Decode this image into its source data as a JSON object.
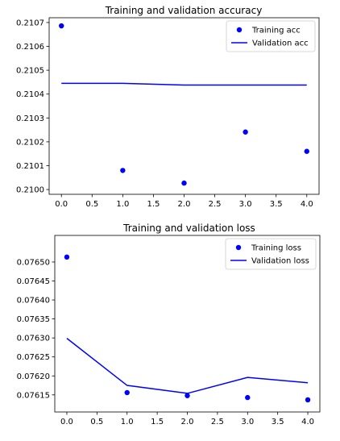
{
  "chart_data": [
    {
      "type": "line",
      "title": "Training and validation accuracy",
      "xlabel": "",
      "ylabel": "",
      "x": [
        0,
        1,
        2,
        3,
        4
      ],
      "xlim": [
        -0.2,
        4.2
      ],
      "ylim": [
        0.20998,
        0.21072
      ],
      "xticks": [
        0.0,
        0.5,
        1.0,
        1.5,
        2.0,
        2.5,
        3.0,
        3.5,
        4.0
      ],
      "xtick_labels": [
        "0.0",
        "0.5",
        "1.0",
        "1.5",
        "2.0",
        "2.5",
        "3.0",
        "3.5",
        "4.0"
      ],
      "yticks": [
        0.21,
        0.2101,
        0.2102,
        0.2103,
        0.2104,
        0.2105,
        0.2106,
        0.2107
      ],
      "ytick_labels": [
        "0.2100",
        "0.2101",
        "0.2102",
        "0.2103",
        "0.2104",
        "0.2105",
        "0.2106",
        "0.2107"
      ],
      "grid": false,
      "legend": "top-right",
      "series": [
        {
          "name": "Training acc",
          "style": "points",
          "color": "#0000ff",
          "values": [
            0.210686,
            0.21008,
            0.210027,
            0.210241,
            0.21016
          ]
        },
        {
          "name": "Validation acc",
          "style": "line",
          "color": "#0000ff",
          "values": [
            0.210445,
            0.210445,
            0.210438,
            0.210438,
            0.210438
          ]
        }
      ]
    },
    {
      "type": "line",
      "title": "Training and validation loss",
      "xlabel": "",
      "ylabel": "",
      "x": [
        0,
        1,
        2,
        3,
        4
      ],
      "xlim": [
        -0.2,
        4.2
      ],
      "ylim": [
        0.076105,
        0.07657
      ],
      "xticks": [
        0.0,
        0.5,
        1.0,
        1.5,
        2.0,
        2.5,
        3.0,
        3.5,
        4.0
      ],
      "xtick_labels": [
        "0.0",
        "0.5",
        "1.0",
        "1.5",
        "2.0",
        "2.5",
        "3.0",
        "3.5",
        "4.0"
      ],
      "yticks": [
        0.07615,
        0.0762,
        0.07625,
        0.0763,
        0.07635,
        0.0764,
        0.07645,
        0.0765
      ],
      "ytick_labels": [
        "0.07615",
        "0.07620",
        "0.07625",
        "0.07630",
        "0.07635",
        "0.07640",
        "0.07645",
        "0.07650"
      ],
      "grid": false,
      "legend": "top-right",
      "series": [
        {
          "name": "Training loss",
          "style": "points",
          "color": "#0000ff",
          "values": [
            0.076513,
            0.076156,
            0.076148,
            0.076143,
            0.076137
          ]
        },
        {
          "name": "Validation loss",
          "style": "line",
          "color": "#0000ff",
          "values": [
            0.076299,
            0.076175,
            0.076154,
            0.076196,
            0.076182
          ]
        }
      ]
    }
  ]
}
